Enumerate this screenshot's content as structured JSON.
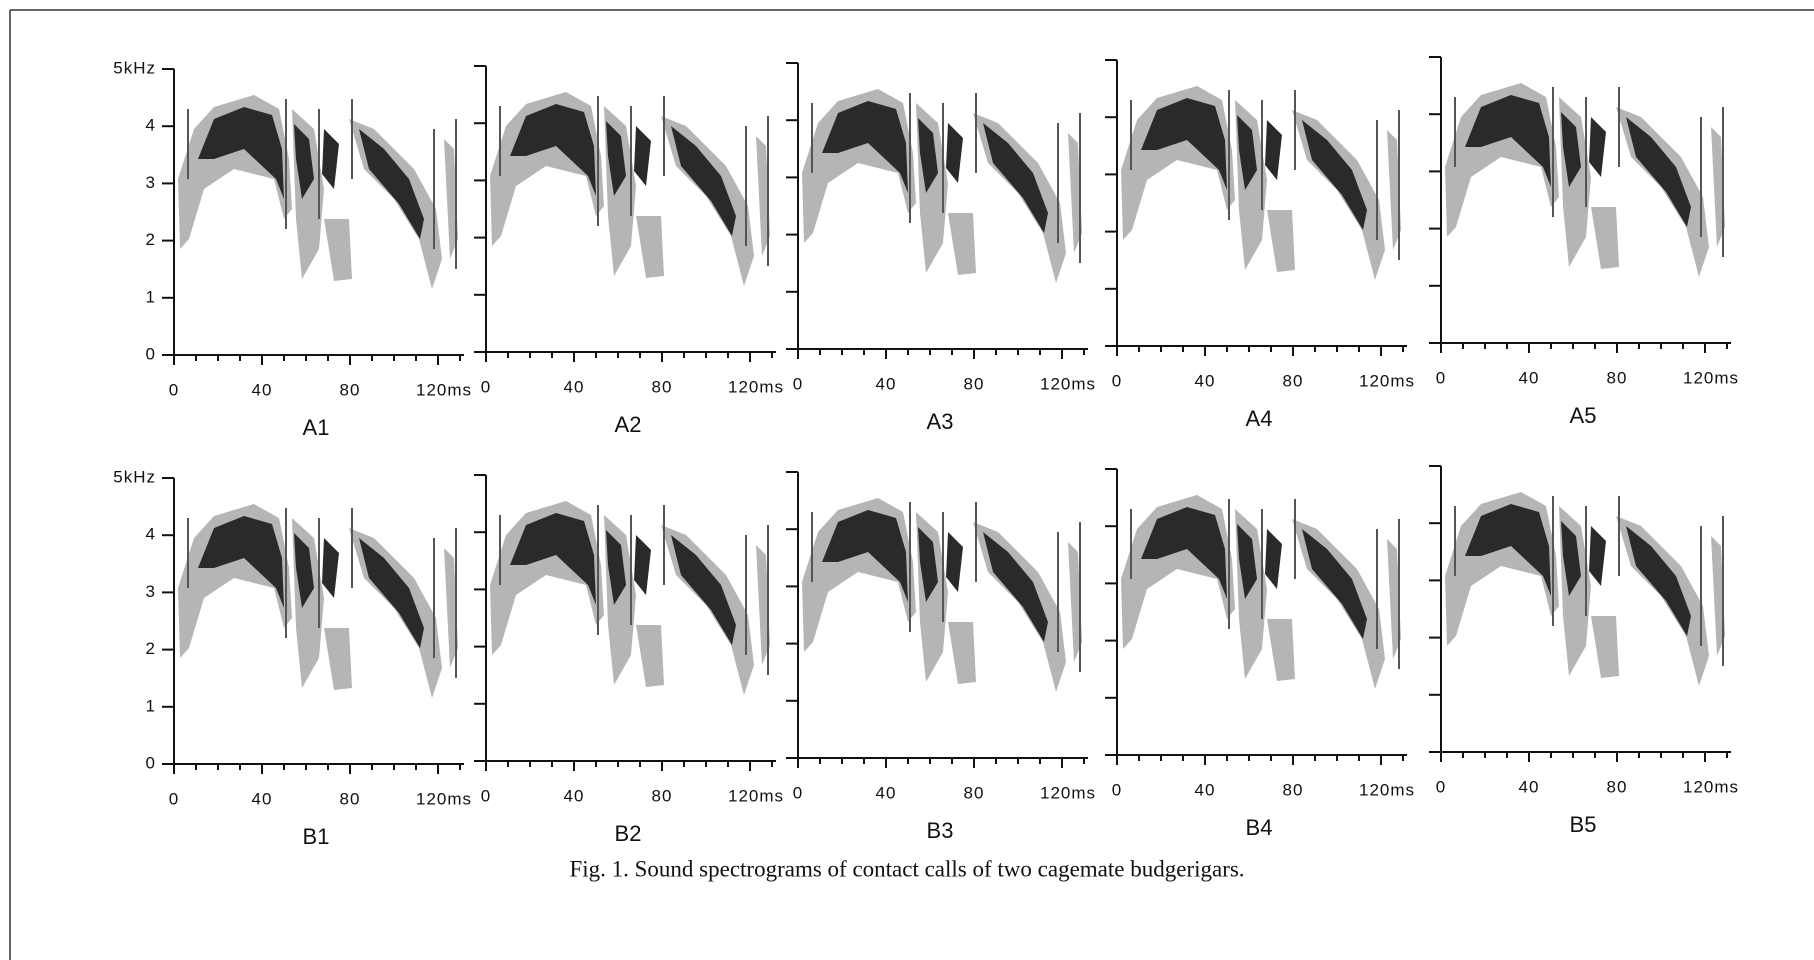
{
  "axes": {
    "y_tick_labels": [
      "5kHz",
      "4",
      "3",
      "2",
      "1",
      "0"
    ],
    "x_tick_labels": [
      "0",
      "40",
      "80",
      "120ms"
    ]
  },
  "panels": [
    {
      "label": "A1"
    },
    {
      "label": "A2"
    },
    {
      "label": "A3"
    },
    {
      "label": "A4"
    },
    {
      "label": "A5"
    },
    {
      "label": "B1"
    },
    {
      "label": "B2"
    },
    {
      "label": "B3"
    },
    {
      "label": "B4"
    },
    {
      "label": "B5"
    }
  ],
  "caption": "Fig. 1.  Sound spectrograms of contact calls of two cagemate budgerigars."
}
